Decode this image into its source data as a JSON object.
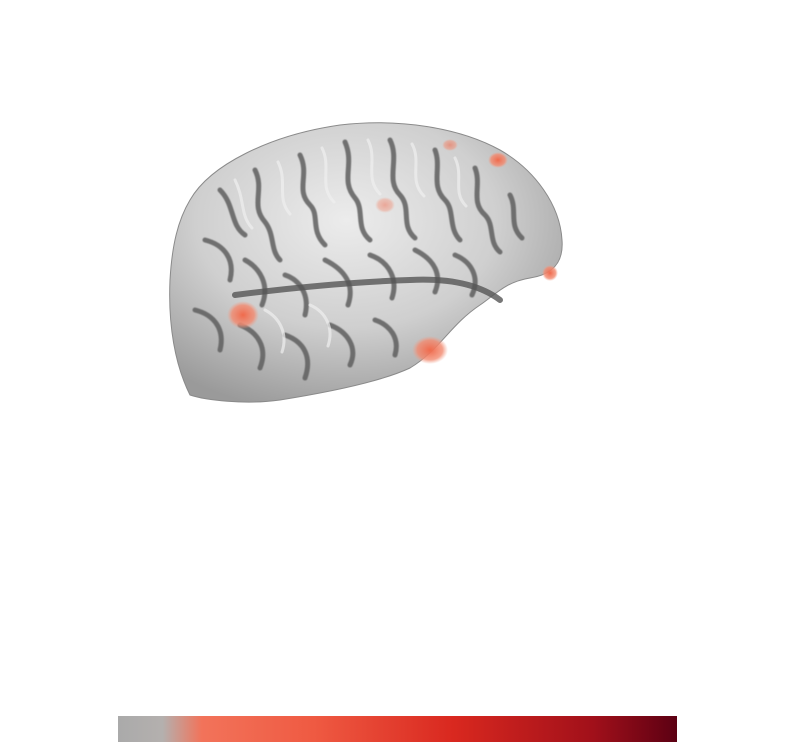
{
  "colormap": {
    "stops": [
      "#aaaaaa",
      "#b4b0ae",
      "#f2735a",
      "#ef5a42",
      "#d9281f",
      "#a1101a",
      "#5c0013"
    ]
  },
  "surface": {
    "base_color": "#c8c8c8",
    "sulcus_color": "#5e5e5e",
    "highlight_color": "#ededed",
    "activation_color": "#f08466"
  }
}
